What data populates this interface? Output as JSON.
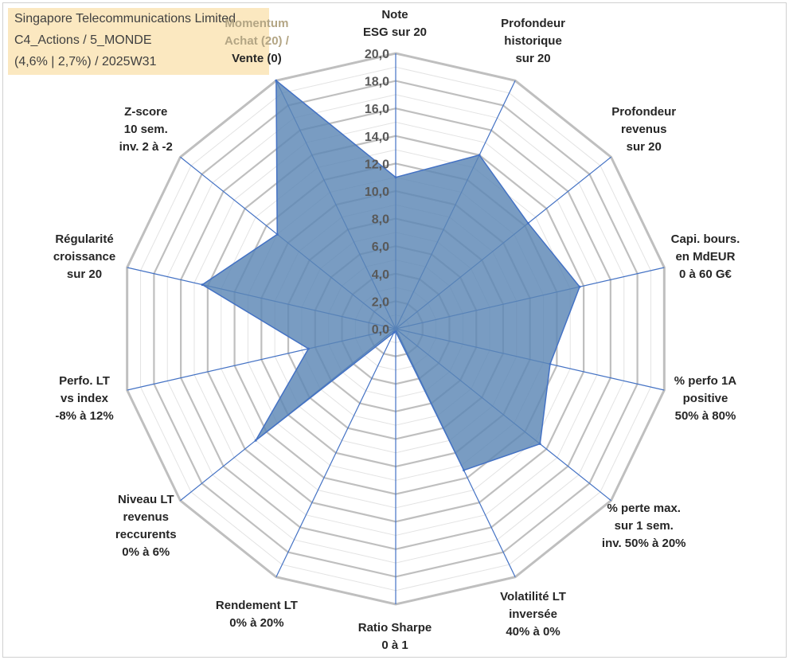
{
  "header": {
    "company": "Singapore Telecommunications Limited",
    "portfolio": "C4_Actions / 5_MONDE",
    "stats": "(4,6% | 2,7%) / 2025W31"
  },
  "chart_data": {
    "type": "radar",
    "title": "",
    "rmin": 0,
    "rmax": 20,
    "tick_labels": [
      "0,0",
      "2,0",
      "4,0",
      "6,0",
      "8,0",
      "10,0",
      "12,0",
      "14,0",
      "16,0",
      "18,0",
      "20,0"
    ],
    "grid": true,
    "fill_color": "#5b86b5",
    "line_color": "#4472c4",
    "grid_color": "#bfbfbf",
    "axes": [
      {
        "label": [
          "Note",
          "ESG sur 20"
        ],
        "value": 11.0
      },
      {
        "label": [
          "Profondeur",
          "historique",
          "sur 20"
        ],
        "value": 14.0
      },
      {
        "label": [
          "Profondeur",
          "revenus",
          "sur 20"
        ],
        "value": 12.3
      },
      {
        "label": [
          "Capi. bours.",
          "en MdEUR",
          "0 à 60 G€"
        ],
        "value": 13.7
      },
      {
        "label": [
          "% perfo 1A",
          "positive",
          "50% à 80%"
        ],
        "value": 11.5
      },
      {
        "label": [
          "% perte max.",
          "sur 1 sem.",
          "inv. 50% à 20%"
        ],
        "value": 13.4
      },
      {
        "label": [
          "Volatilité LT",
          "inversée",
          "40% à 0%"
        ],
        "value": 11.4
      },
      {
        "label": [
          "Ratio Sharpe",
          "0 à 1"
        ],
        "value": 0.2
      },
      {
        "label": [
          "Rendement LT",
          "0% à 20%"
        ],
        "value": 0.3
      },
      {
        "label": [
          "Niveau LT",
          "revenus",
          "reccurents",
          "0% à 6%"
        ],
        "value": 13.0
      },
      {
        "label": [
          "Perfo. LT",
          "vs index",
          "-8% à 12%"
        ],
        "value": 6.5
      },
      {
        "label": [
          "Régularité",
          "croissance",
          "sur 20"
        ],
        "value": 14.4
      },
      {
        "label": [
          "Z-score",
          "10 sem.",
          "inv. 2 à -2"
        ],
        "value": 11.0
      },
      {
        "label_muted": [
          "Momentum",
          "Achat (20) /"
        ],
        "label": [
          "Vente (0)"
        ],
        "value": 20.0
      }
    ]
  }
}
